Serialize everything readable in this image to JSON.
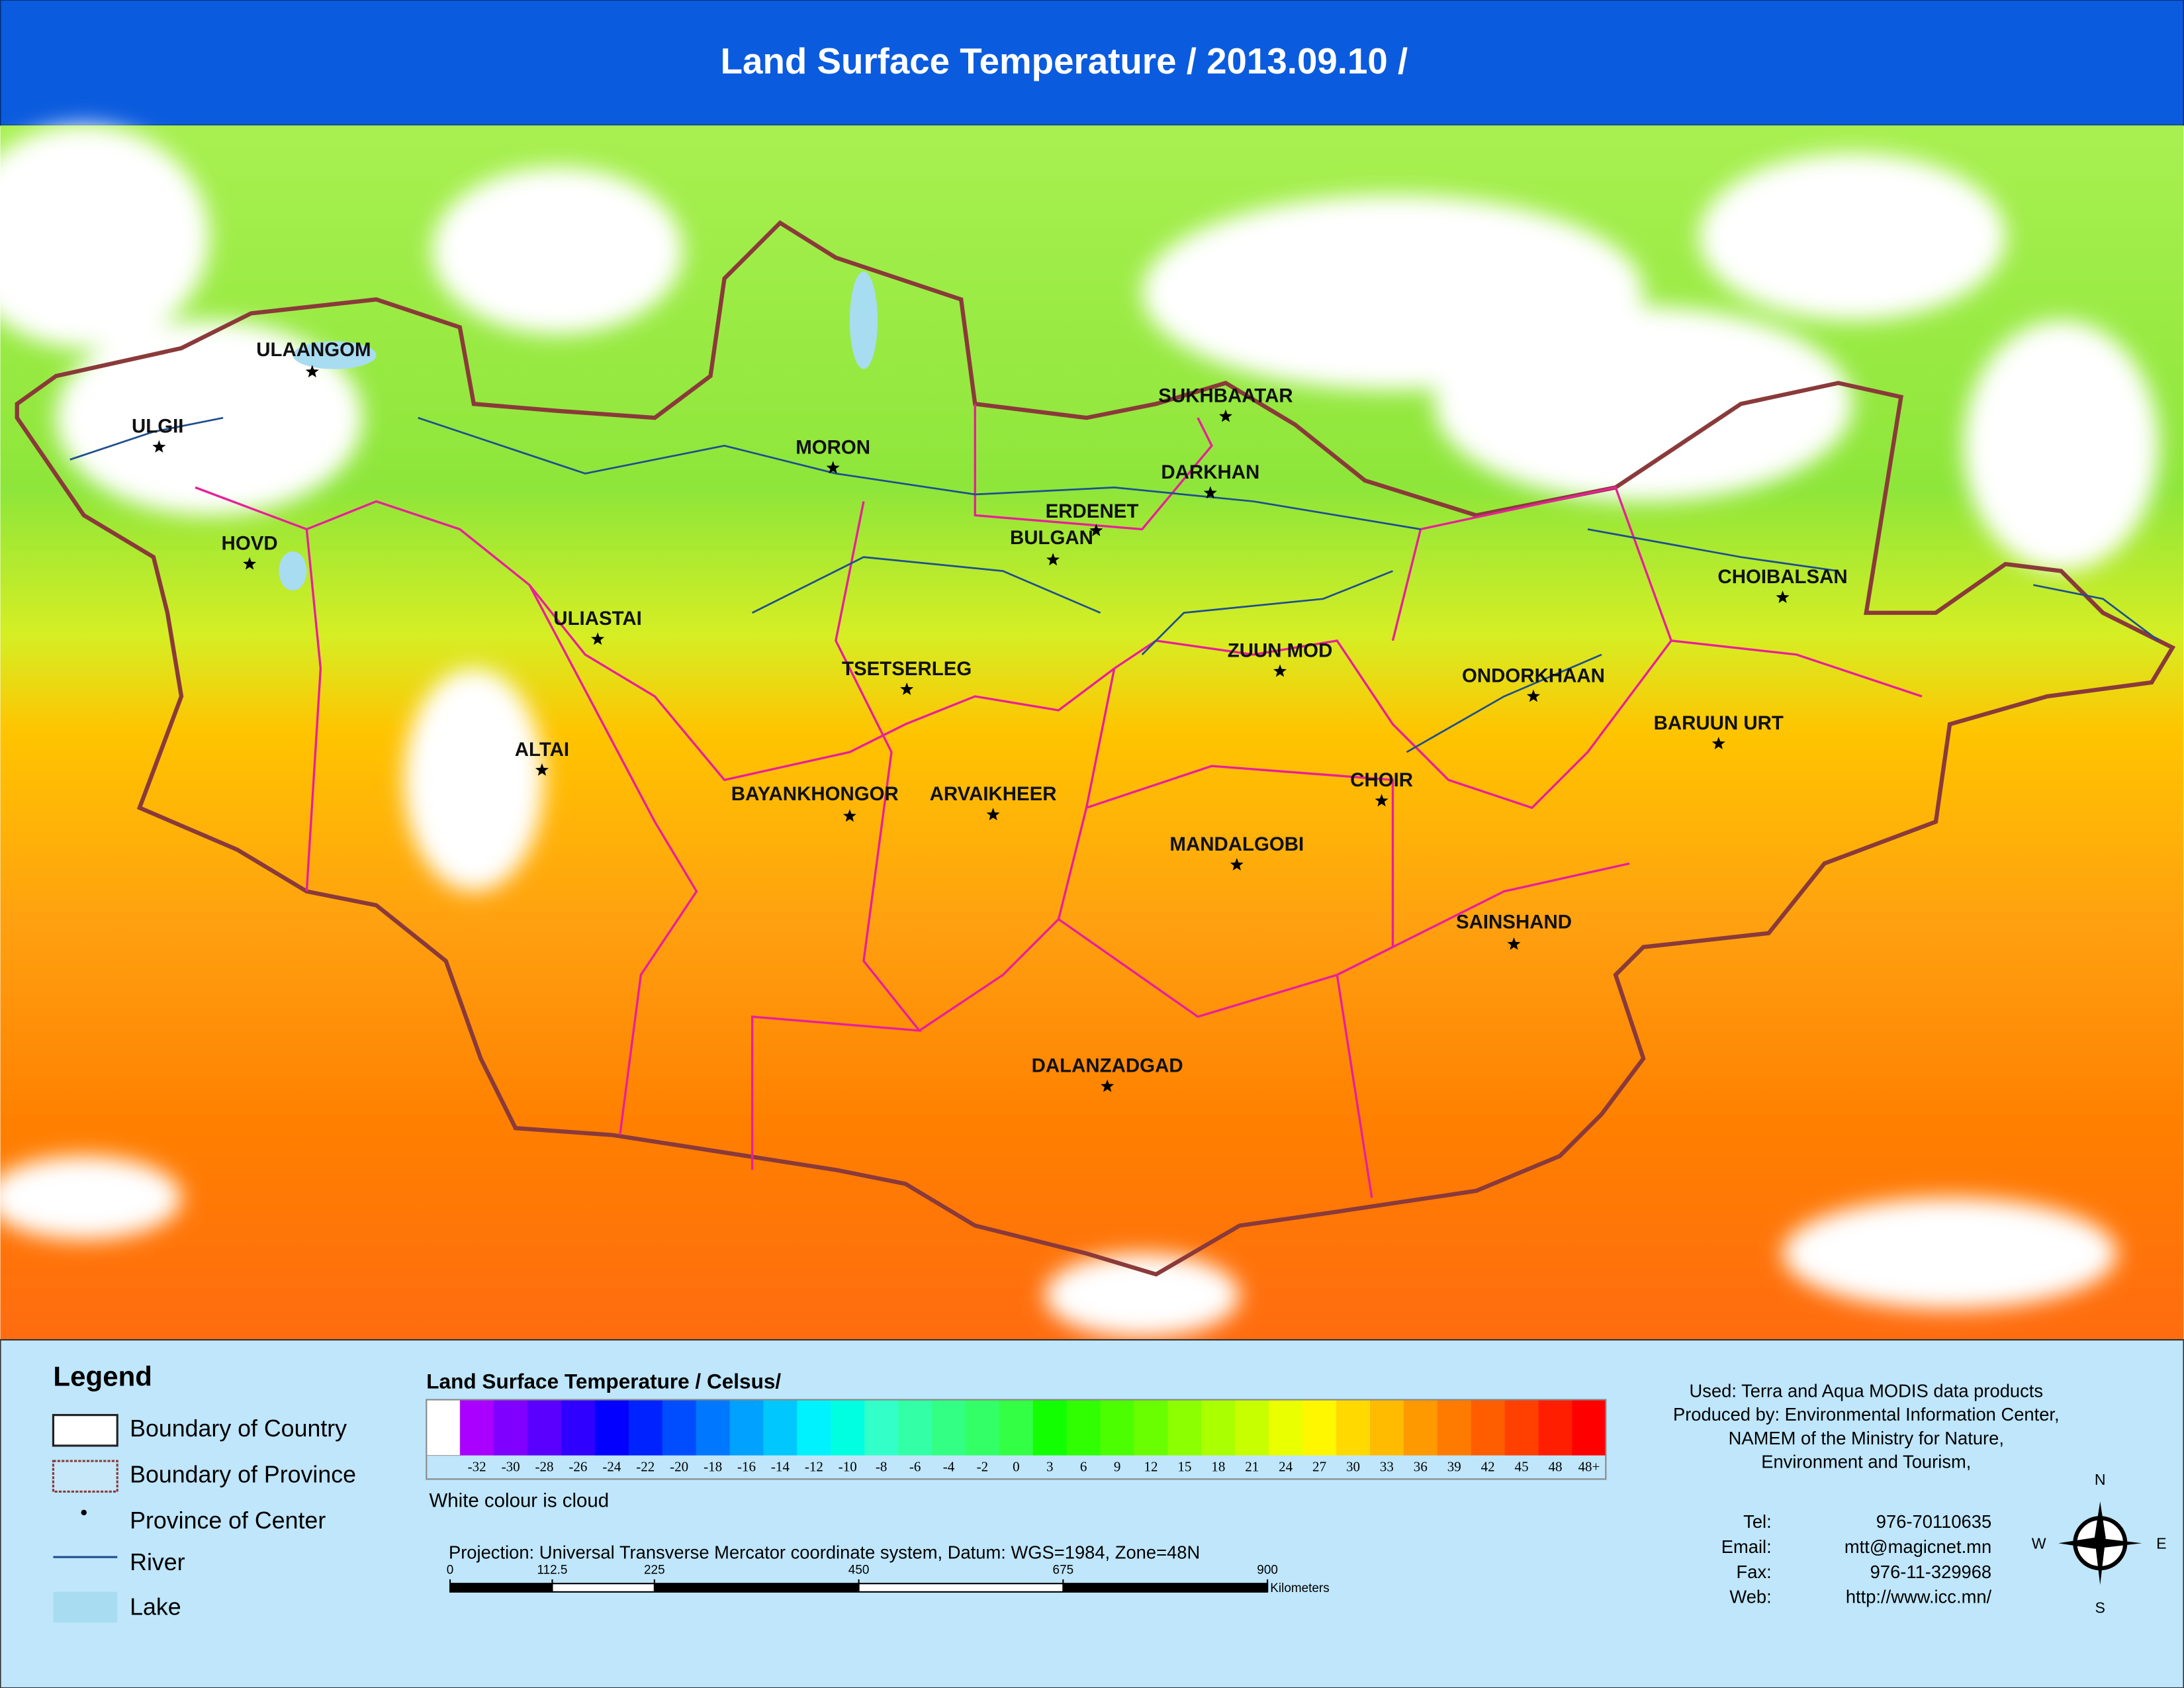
{
  "header": {
    "title": "Land Surface Temperature / 2013.09.10 /"
  },
  "map": {
    "places": [
      "ULAANGOM",
      "ULGII",
      "HOVD",
      "MORON",
      "SUKHBAATAR",
      "DARKHAN",
      "ERDENET",
      "BULGAN",
      "ULIASTAI",
      "ZUUN MOD",
      "TSETSERLEG",
      "CHOIBALSAN",
      "ONDORKHAAN",
      "BARUUN URT",
      "ALTAI",
      "BAYANKHONGOR",
      "ARVAIKHEER",
      "CHOIR",
      "MANDALGOBI",
      "SAINSHAND",
      "DALANZADGAD"
    ]
  },
  "legend": {
    "title": "Legend",
    "items": [
      "Boundary of Country",
      "Boundary of Province",
      "Province of Center",
      "River",
      "Lake"
    ]
  },
  "color_scale": {
    "title": "Land Surface Temperature / Celsus/",
    "labels": [
      "-32",
      "-30",
      "-28",
      "-26",
      "-24",
      "-22",
      "-20",
      "-18",
      "-16",
      "-14",
      "-12",
      "-10",
      "-8",
      "-6",
      "-4",
      "-2",
      "0",
      "3",
      "6",
      "9",
      "12",
      "15",
      "18",
      "21",
      "24",
      "27",
      "30",
      "33",
      "36",
      "39",
      "42",
      "45",
      "48",
      "48+"
    ],
    "note": "White colour is cloud"
  },
  "projection": "Projection: Universal Transverse Mercator coordinate system, Datum: WGS=1984, Zone=48N",
  "scale_bar": {
    "ticks": [
      0,
      112.5,
      225,
      450,
      675,
      900
    ],
    "unit": "Kilometers"
  },
  "credits": [
    "Used: Terra and Aqua MODIS data products",
    "Produced by: Environmental Information Center,",
    "NAMEM of the Ministry for Nature,",
    "Environment and Tourism,"
  ],
  "contact": [
    {
      "label": "Tel:",
      "value": "976-70110635"
    },
    {
      "label": "Email:",
      "value": "mtt@magicnet.mn"
    },
    {
      "label": "Fax:",
      "value": "976-11-329968"
    },
    {
      "label": "Web:",
      "value": "http://www.icc.mn/"
    }
  ],
  "compass": {
    "N": "N",
    "E": "E",
    "S": "S",
    "W": "W"
  }
}
